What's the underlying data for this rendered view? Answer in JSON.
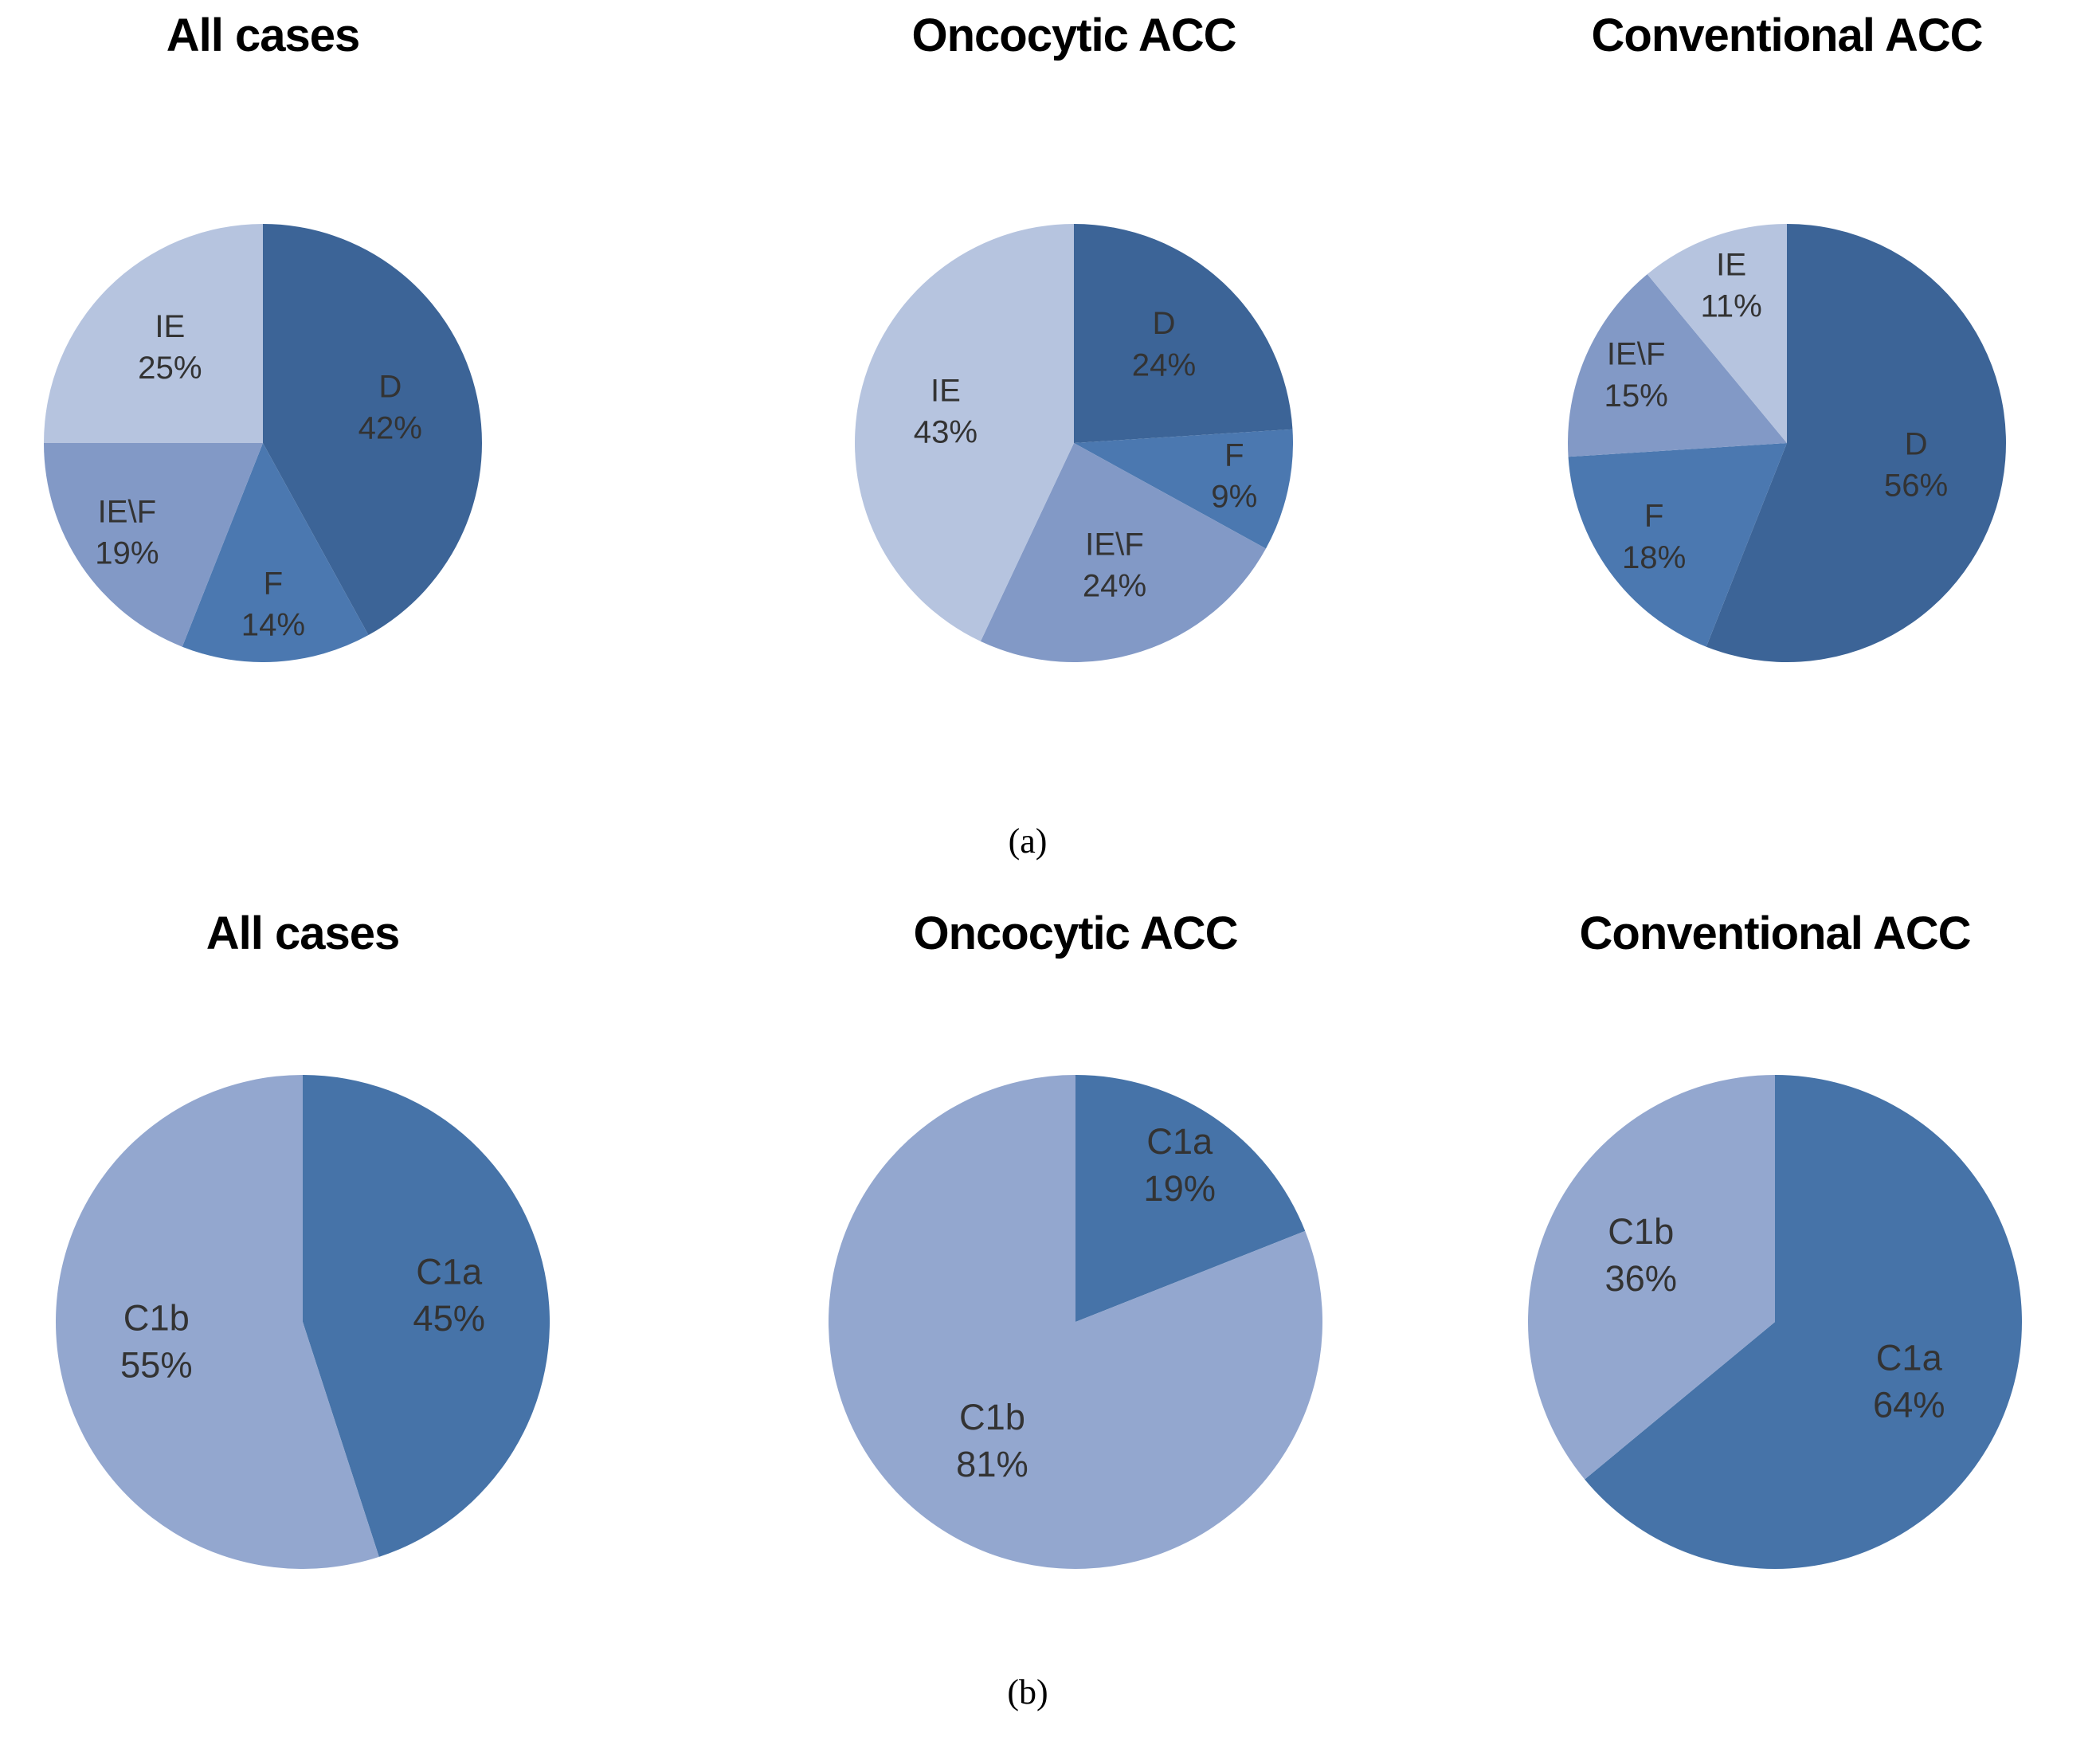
{
  "figure": {
    "caption_a": "(a)",
    "caption_b": "(b)"
  },
  "palette": {
    "D": "#3c6497",
    "F": "#4b78b0",
    "IE_backslash_F": "#8299c6",
    "IE": "#b6c4df",
    "C1a": "#4673a8",
    "C1b": "#93a7cf"
  },
  "chart_data": [
    {
      "type": "pie",
      "panel": "a",
      "title": "All cases",
      "direction": "clockwise",
      "start_angle_deg": 0,
      "slices": [
        {
          "label": "D",
          "value": 42,
          "color": "#3c6497"
        },
        {
          "label": "F",
          "value": 14,
          "color": "#4b78b0"
        },
        {
          "label": "IE\\F",
          "value": 19,
          "color": "#8299c6"
        },
        {
          "label": "IE",
          "value": 25,
          "color": "#b6c4df"
        }
      ]
    },
    {
      "type": "pie",
      "panel": "a",
      "title": "Oncocytic ACC",
      "direction": "clockwise",
      "start_angle_deg": 0,
      "slices": [
        {
          "label": "D",
          "value": 24,
          "color": "#3c6497"
        },
        {
          "label": "F",
          "value": 9,
          "color": "#4b78b0"
        },
        {
          "label": "IE\\F",
          "value": 24,
          "color": "#8299c6"
        },
        {
          "label": "IE",
          "value": 43,
          "color": "#b6c4df"
        }
      ]
    },
    {
      "type": "pie",
      "panel": "a",
      "title": "Conventional ACC",
      "direction": "clockwise",
      "start_angle_deg": 0,
      "slices": [
        {
          "label": "D",
          "value": 56,
          "color": "#3c6497"
        },
        {
          "label": "F",
          "value": 18,
          "color": "#4b78b0"
        },
        {
          "label": "IE\\F",
          "value": 15,
          "color": "#8299c6"
        },
        {
          "label": "IE",
          "value": 11,
          "color": "#b6c4df"
        }
      ]
    },
    {
      "type": "pie",
      "panel": "b",
      "title": "All cases",
      "direction": "clockwise",
      "start_angle_deg": 0,
      "slices": [
        {
          "label": "C1a",
          "value": 45,
          "color": "#4673a8"
        },
        {
          "label": "C1b",
          "value": 55,
          "color": "#93a7cf"
        }
      ]
    },
    {
      "type": "pie",
      "panel": "b",
      "title": "Oncocytic ACC",
      "direction": "clockwise",
      "start_angle_deg": 0,
      "slices": [
        {
          "label": "C1a",
          "value": 19,
          "color": "#4673a8"
        },
        {
          "label": "C1b",
          "value": 81,
          "color": "#93a7cf"
        }
      ]
    },
    {
      "type": "pie",
      "panel": "b",
      "title": "Conventional ACC",
      "direction": "clockwise",
      "start_angle_deg": 0,
      "slices": [
        {
          "label": "C1a",
          "value": 64,
          "color": "#4673a8"
        },
        {
          "label": "C1b",
          "value": 36,
          "color": "#93a7cf"
        }
      ]
    }
  ]
}
